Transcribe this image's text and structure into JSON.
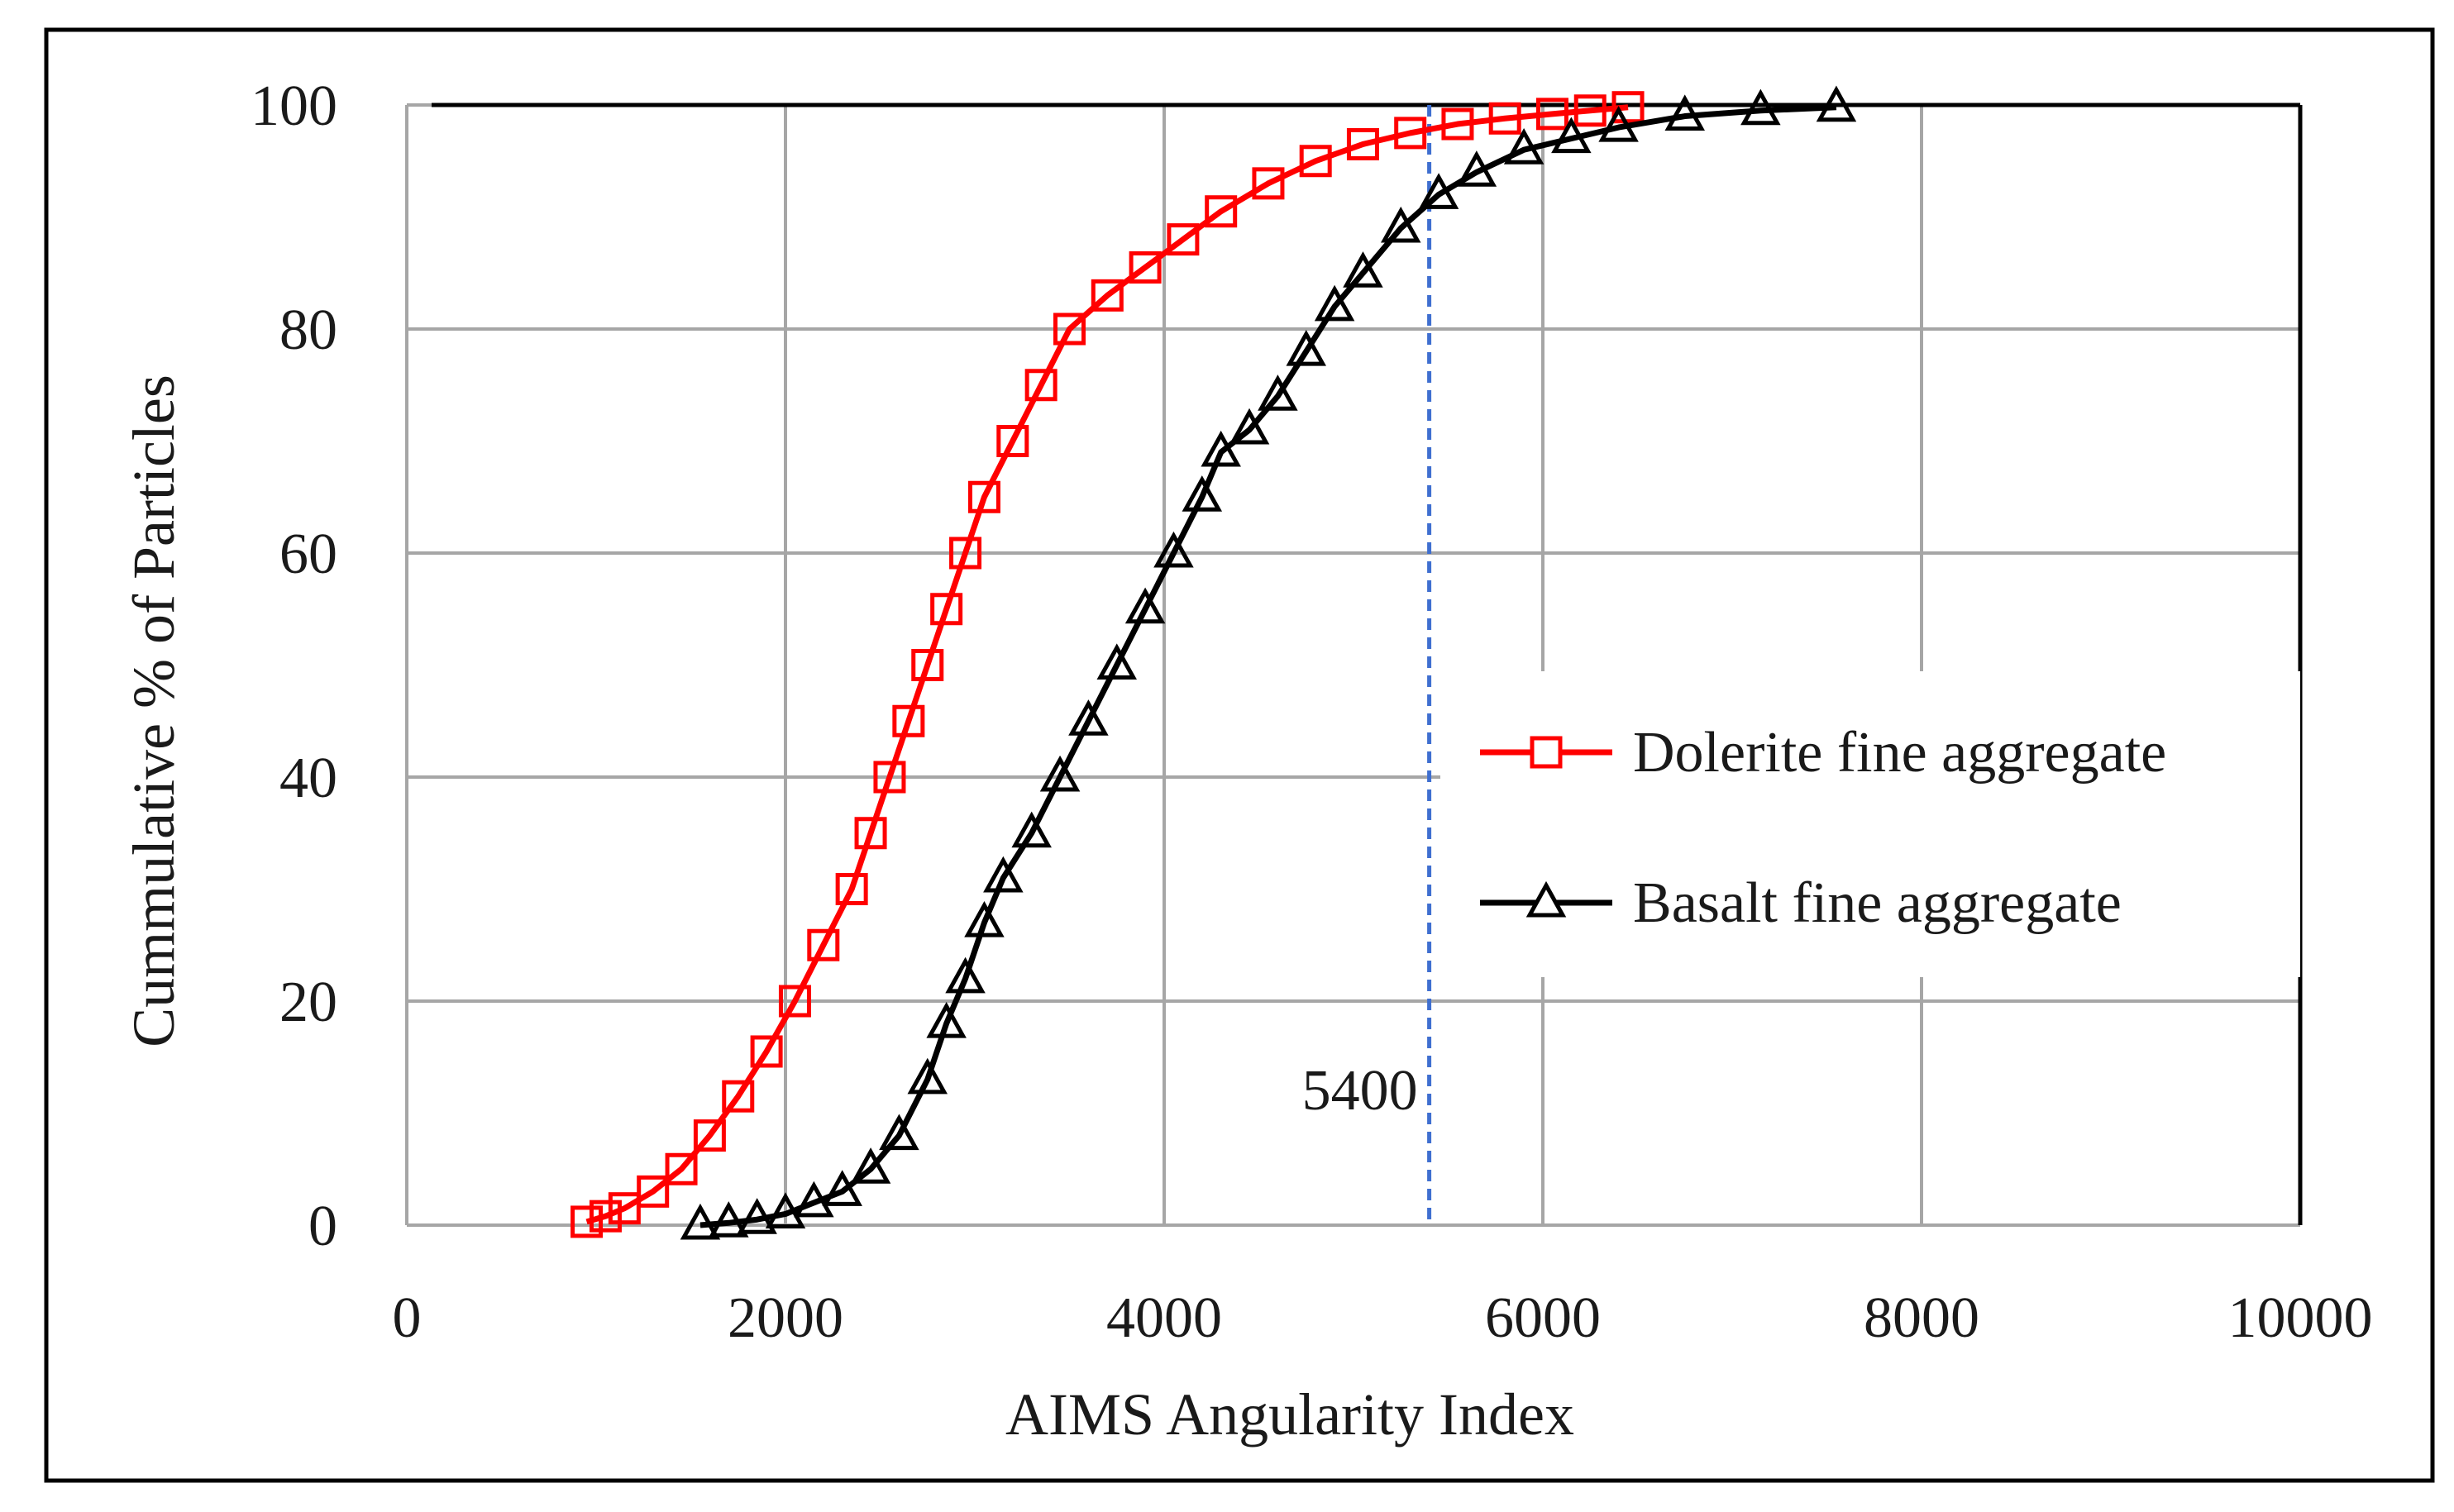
{
  "chart_data": {
    "type": "line",
    "title": "",
    "xlabel": "AIMS Angularity Index",
    "ylabel": "Cummulative % of Particles",
    "xlim": [
      0,
      10000
    ],
    "ylim": [
      0,
      100
    ],
    "x_ticks": [
      "0",
      "2000",
      "4000",
      "6000",
      "8000",
      "10000"
    ],
    "y_ticks": [
      "0",
      "20",
      "40",
      "60",
      "80",
      "100"
    ],
    "grid": true,
    "legend_placement": "center-right",
    "reference_line": {
      "x": 5400,
      "label": "5400",
      "color": "#3f6fd0",
      "style": "dashed"
    },
    "series": [
      {
        "name": "Dolerite fine aggregate",
        "color": "#ff0000",
        "marker": "square-open",
        "points": [
          [
            950,
            0.3
          ],
          [
            1050,
            0.8
          ],
          [
            1150,
            1.5
          ],
          [
            1300,
            3
          ],
          [
            1450,
            5
          ],
          [
            1600,
            8
          ],
          [
            1750,
            11.5
          ],
          [
            1900,
            15.5
          ],
          [
            2050,
            20
          ],
          [
            2200,
            25
          ],
          [
            2350,
            30
          ],
          [
            2450,
            35
          ],
          [
            2550,
            40
          ],
          [
            2650,
            45
          ],
          [
            2750,
            50
          ],
          [
            2850,
            55
          ],
          [
            2950,
            60
          ],
          [
            3050,
            65
          ],
          [
            3200,
            70
          ],
          [
            3350,
            75
          ],
          [
            3500,
            80
          ],
          [
            3700,
            83
          ],
          [
            3900,
            85.5
          ],
          [
            4100,
            88
          ],
          [
            4300,
            90.5
          ],
          [
            4550,
            93
          ],
          [
            4800,
            95
          ],
          [
            5050,
            96.5
          ],
          [
            5300,
            97.5
          ],
          [
            5550,
            98.3
          ],
          [
            5800,
            98.8
          ],
          [
            6050,
            99.2
          ],
          [
            6250,
            99.5
          ],
          [
            6450,
            99.8
          ]
        ]
      },
      {
        "name": "Basalt fine aggregate",
        "color": "#000000",
        "marker": "triangle-open",
        "points": [
          [
            1550,
            0
          ],
          [
            1700,
            0.2
          ],
          [
            1850,
            0.5
          ],
          [
            2000,
            1
          ],
          [
            2150,
            2
          ],
          [
            2300,
            3
          ],
          [
            2450,
            5
          ],
          [
            2600,
            8
          ],
          [
            2750,
            13
          ],
          [
            2850,
            18
          ],
          [
            2950,
            22
          ],
          [
            3050,
            27
          ],
          [
            3150,
            31
          ],
          [
            3300,
            35
          ],
          [
            3450,
            40
          ],
          [
            3600,
            45
          ],
          [
            3750,
            50
          ],
          [
            3900,
            55
          ],
          [
            4050,
            60
          ],
          [
            4200,
            65
          ],
          [
            4300,
            69
          ],
          [
            4450,
            71
          ],
          [
            4600,
            74
          ],
          [
            4750,
            78
          ],
          [
            4900,
            82
          ],
          [
            5050,
            85
          ],
          [
            5250,
            89
          ],
          [
            5450,
            92
          ],
          [
            5650,
            94
          ],
          [
            5900,
            96
          ],
          [
            6150,
            97
          ],
          [
            6400,
            98
          ],
          [
            6750,
            99
          ],
          [
            7150,
            99.5
          ],
          [
            7550,
            99.8
          ]
        ]
      }
    ]
  }
}
